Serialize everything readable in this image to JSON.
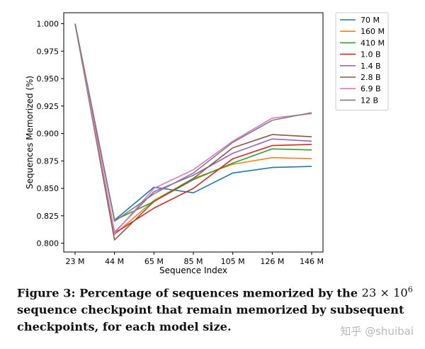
{
  "chart_data": {
    "type": "line",
    "xlabel": "Sequence Index",
    "ylabel": "Sequences Memorized (%)",
    "categories": [
      "23 M",
      "44 M",
      "65 M",
      "85 M",
      "105 M",
      "126 M",
      "146 M"
    ],
    "ylim": [
      0.792,
      1.01
    ],
    "yticks": [
      "0.800",
      "0.825",
      "0.850",
      "0.875",
      "0.900",
      "0.925",
      "0.950",
      "0.975",
      "1.000"
    ],
    "grid": false,
    "legend_position": "outside-right",
    "series": [
      {
        "name": "70 M",
        "color": "#1f77b4",
        "values": [
          1.0,
          0.821,
          0.851,
          0.846,
          0.864,
          0.869,
          0.87
        ]
      },
      {
        "name": "160 M",
        "color": "#ff7f0e",
        "values": [
          1.0,
          0.808,
          0.839,
          0.859,
          0.872,
          0.878,
          0.877
        ]
      },
      {
        "name": "410 M",
        "color": "#2ca02c",
        "values": [
          1.0,
          0.821,
          0.838,
          0.858,
          0.873,
          0.886,
          0.885
        ]
      },
      {
        "name": "1.0 B",
        "color": "#d62728",
        "values": [
          1.0,
          0.809,
          0.832,
          0.85,
          0.877,
          0.889,
          0.89
        ]
      },
      {
        "name": "1.4 B",
        "color": "#9467bd",
        "values": [
          1.0,
          0.81,
          0.847,
          0.862,
          0.882,
          0.895,
          0.893
        ]
      },
      {
        "name": "2.8 B",
        "color": "#8c564b",
        "values": [
          1.0,
          0.803,
          0.838,
          0.859,
          0.887,
          0.899,
          0.897
        ]
      },
      {
        "name": "6.9 B",
        "color": "#e377c2",
        "values": [
          1.0,
          0.809,
          0.85,
          0.867,
          0.893,
          0.914,
          0.918
        ]
      },
      {
        "name": "12 B",
        "color": "#7f7f7f",
        "values": [
          1.0,
          0.82,
          0.845,
          0.864,
          0.892,
          0.912,
          0.919
        ]
      }
    ]
  },
  "caption": {
    "prefix": "Figure 3: Percentage of sequences memorized by the ",
    "math_base": "23 × 10",
    "math_exp": "6",
    "suffix": " sequence checkpoint that remain memorized by subsequent checkpoints, for each model size."
  },
  "watermark": "知乎 @shuibai"
}
